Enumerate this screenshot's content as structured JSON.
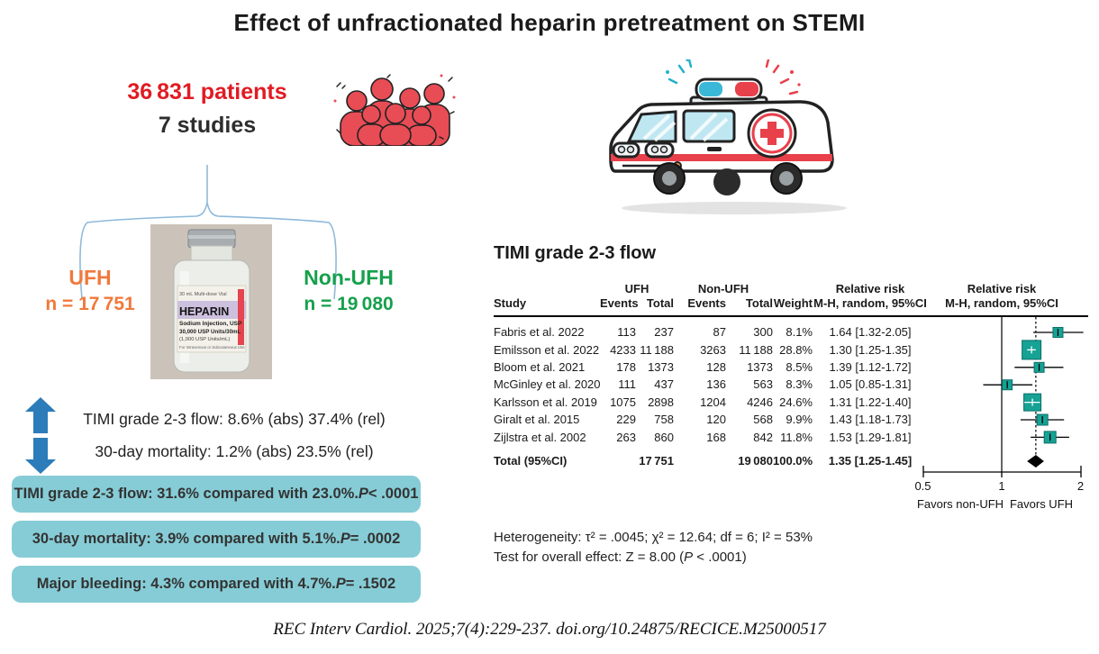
{
  "title": "Effect of unfractionated heparin pretreatment on STEMI",
  "colors": {
    "patients_red": "#e11b22",
    "ufh_orange": "#f0793c",
    "nonufh_green": "#16a04c",
    "arrow_blue": "#2b7cb9",
    "box_teal": "#86ccd6",
    "marker_teal": "#16a295",
    "brace_blue": "#8fb9da"
  },
  "left": {
    "patients": "36 831 patients",
    "studies": "7 studies",
    "ufh": {
      "name": "UFH",
      "n": "n = 17 751"
    },
    "non_ufh": {
      "name": "Non-UFH",
      "n": "n = 19 080"
    },
    "vial": {
      "volume": "30 mL Multi-dose Vial",
      "name": "HEPARIN",
      "sub": "Sodium Injection, USP",
      "units": "30,000 USP Units/30mL",
      "units2": "(1,000 USP Units/mL)",
      "route": "For Intravenous or Subcutaneous Use"
    },
    "effects": [
      {
        "direction": "up",
        "text": "TIMI grade 2-3 flow: 8.6% (abs) 37.4% (rel)"
      },
      {
        "direction": "down",
        "text": "30-day mortality: 1.2% (abs) 23.5% (rel)"
      }
    ],
    "boxes": [
      {
        "pre": "TIMI grade 2-3 flow: 31.6% compared with 23.0%. ",
        "p": "P",
        "post": " < .0001"
      },
      {
        "pre": "30-day mortality: 3.9% compared with 5.1%. ",
        "p": "P",
        "post": " = .0002"
      },
      {
        "pre": "Major bleeding: 4.3% compared with 4.7%. ",
        "p": "P",
        "post": " = .1502"
      }
    ]
  },
  "chart_data": {
    "type": "forest",
    "title": "TIMI grade 2-3 flow",
    "header": {
      "study": "Study",
      "ufh": "UFH",
      "non_ufh": "Non-UFH",
      "events": "Events",
      "total": "Total",
      "weight": "Weight",
      "rr_line1": "Relative risk",
      "rr_line2": "M-H, random, 95%CI"
    },
    "studies": [
      {
        "study": "Fabris et al. 2022",
        "ufh_events": "113",
        "ufh_total": "237",
        "nonufh_events": "87",
        "nonufh_total": "300",
        "weight": "8.1%",
        "w": 8.1,
        "rr": 1.64,
        "lo": 1.32,
        "hi": 2.05,
        "rr_text": "1.64 [1.32-2.05]"
      },
      {
        "study": "Emilsson et al. 2022",
        "ufh_events": "4233",
        "ufh_total": "11 188",
        "nonufh_events": "3263",
        "nonufh_total": "11 188",
        "weight": "28.8%",
        "w": 28.8,
        "rr": 1.3,
        "lo": 1.25,
        "hi": 1.35,
        "rr_text": "1.30 [1.25-1.35]"
      },
      {
        "study": "Bloom et al. 2021",
        "ufh_events": "178",
        "ufh_total": "1373",
        "nonufh_events": "128",
        "nonufh_total": "1373",
        "weight": "8.5%",
        "w": 8.5,
        "rr": 1.39,
        "lo": 1.12,
        "hi": 1.72,
        "rr_text": "1.39 [1.12-1.72]"
      },
      {
        "study": "McGinley et al. 2020",
        "ufh_events": "111",
        "ufh_total": "437",
        "nonufh_events": "136",
        "nonufh_total": "563",
        "weight": "8.3%",
        "w": 8.3,
        "rr": 1.05,
        "lo": 0.85,
        "hi": 1.31,
        "rr_text": "1.05 [0.85-1.31]"
      },
      {
        "study": "Karlsson et al. 2019",
        "ufh_events": "1075",
        "ufh_total": "2898",
        "nonufh_events": "1204",
        "nonufh_total": "4246",
        "weight": "24.6%",
        "w": 24.6,
        "rr": 1.31,
        "lo": 1.22,
        "hi": 1.4,
        "rr_text": "1.31 [1.22-1.40]"
      },
      {
        "study": "Giralt et al. 2015",
        "ufh_events": "229",
        "ufh_total": "758",
        "nonufh_events": "120",
        "nonufh_total": "568",
        "weight": "9.9%",
        "w": 9.9,
        "rr": 1.43,
        "lo": 1.18,
        "hi": 1.73,
        "rr_text": "1.43 [1.18-1.73]"
      },
      {
        "study": "Zijlstra et al. 2002",
        "ufh_events": "263",
        "ufh_total": "860",
        "nonufh_events": "168",
        "nonufh_total": "842",
        "weight": "11.8%",
        "w": 11.8,
        "rr": 1.53,
        "lo": 1.29,
        "hi": 1.81,
        "rr_text": "1.53 [1.29-1.81]"
      }
    ],
    "total": {
      "label": "Total (95%CI)",
      "ufh_total": "17 751",
      "nonufh_total": "19 080",
      "weight": "100.0%",
      "rr": 1.35,
      "lo": 1.25,
      "hi": 1.45,
      "rr_text": "1.35 [1.25-1.45]"
    },
    "axis": {
      "scale": "log",
      "ticks": [
        0.5,
        1,
        2
      ],
      "tick_labels": [
        "0.5",
        "1",
        "2"
      ],
      "favors_left": "Favors non-UFH",
      "favors_right": "Favors UFH"
    },
    "heterogeneity": "Heterogeneity: τ² = .0045; χ² = 12.64; df = 6; I² = 53%",
    "overall_effect": {
      "pre": "Test for overall effect: Z = 8.00 (",
      "p": "P",
      "post": " < .0001)"
    }
  },
  "footer": {
    "citation": "REC Interv Cardiol. 2025;7(4):229-237. doi.org/10.24875/RECICE.M25000517"
  }
}
